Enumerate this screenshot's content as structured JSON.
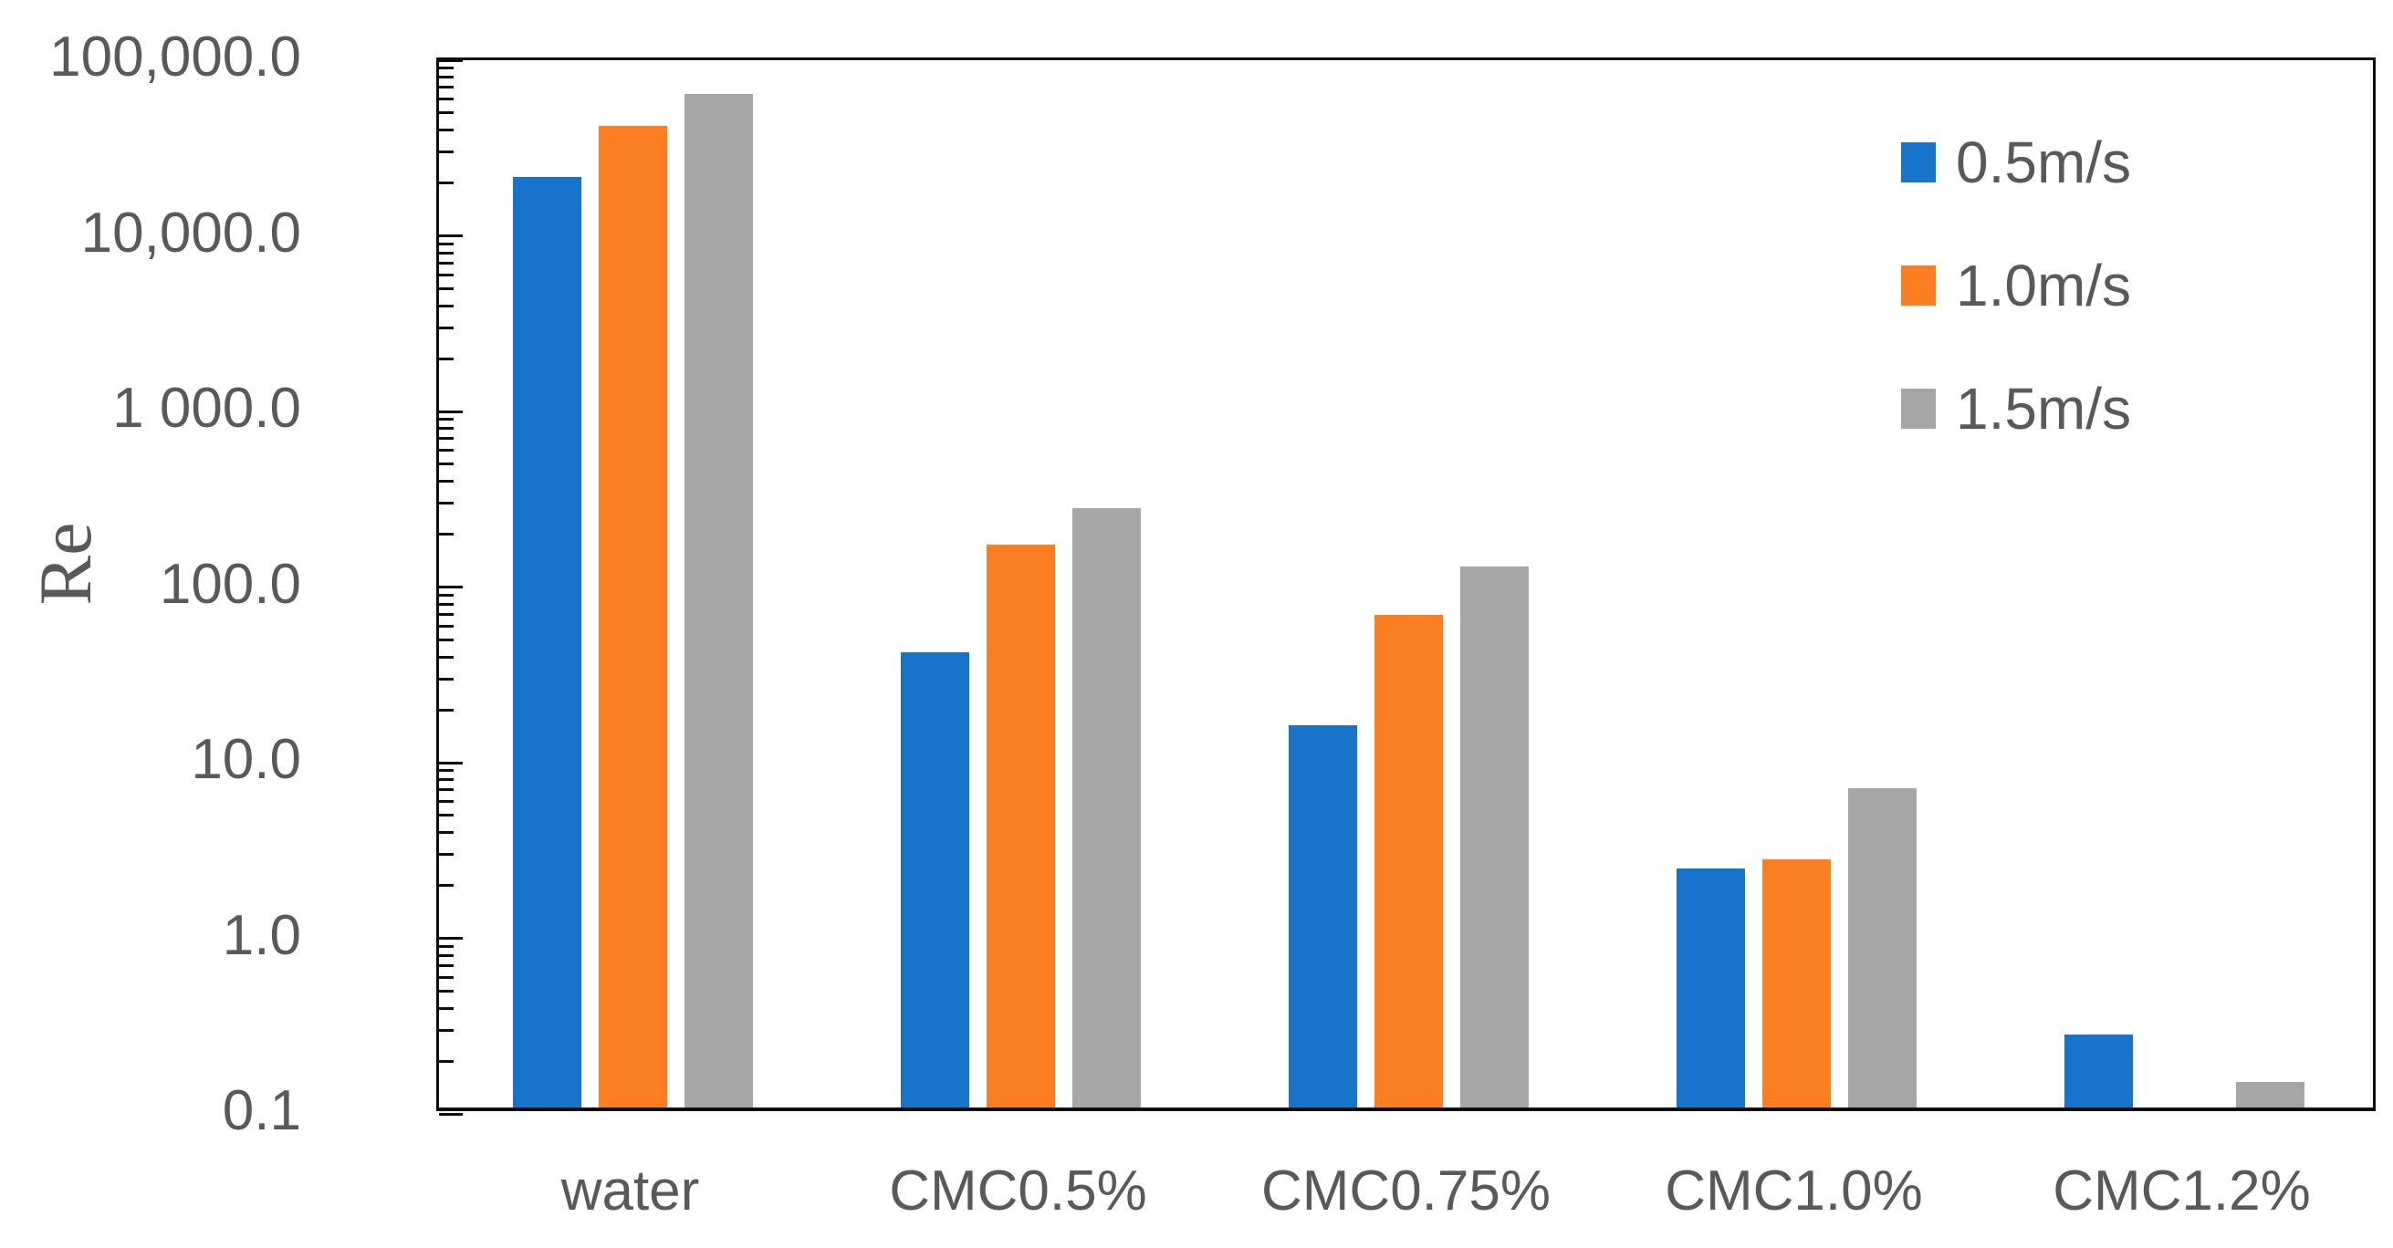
{
  "colors": {
    "background": "#ffffff",
    "axis_line": "#0d0d0d",
    "text": "#595959",
    "series_blue": "#1874CB",
    "series_orange": "#FC7E21",
    "series_gray": "#A6A6A6"
  },
  "chart_data": {
    "type": "bar",
    "title": "",
    "xlabel": "",
    "ylabel": "Re",
    "y_scale": "log",
    "y_min": 0.1,
    "y_max": 100000,
    "y_tick_labels": [
      "100,000.0",
      "10,000.0",
      "1 000.0",
      "100.0",
      "10.0",
      "1.0",
      "0.1"
    ],
    "grid": false,
    "legend_position": "upper-right-inside",
    "categories": [
      "water",
      "CMC0.5%",
      "CMC0.75%",
      "CMC1.0%",
      "CMC1.2%"
    ],
    "series": [
      {
        "name": "0.5m/s",
        "color": "#1874CB",
        "values": [
          20000,
          39,
          15,
          2.3,
          0.26
        ]
      },
      {
        "name": "1.0m/s",
        "color": "#FC7E21",
        "values": [
          39000,
          160,
          64,
          2.6,
          null
        ]
      },
      {
        "name": "1.5m/s",
        "color": "#A6A6A6",
        "values": [
          59000,
          260,
          120,
          6.6,
          0.14
        ]
      }
    ]
  }
}
